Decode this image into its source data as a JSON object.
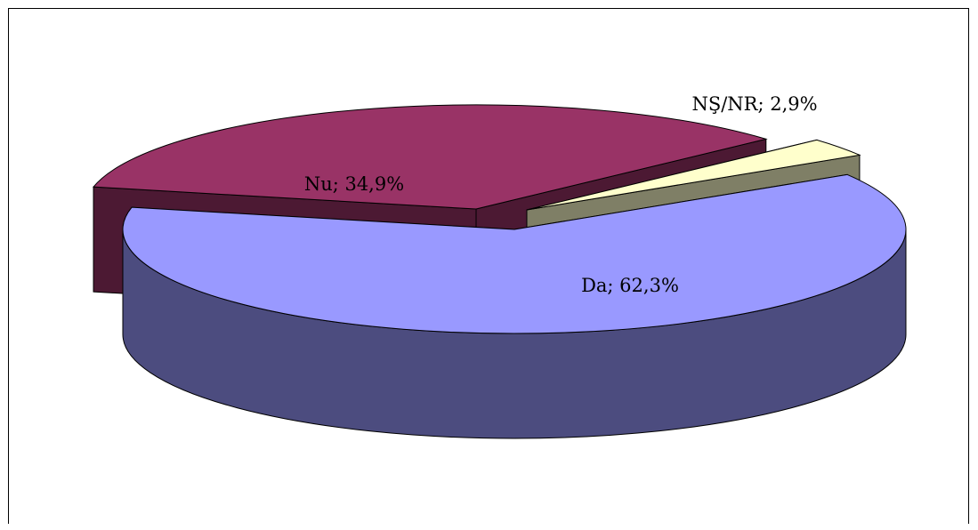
{
  "chart_data": {
    "type": "pie",
    "title": "",
    "slices": [
      {
        "label": "Da; 62,3%",
        "name": "Da",
        "value": 62.3,
        "color": "#9999ff",
        "side_color": "#4c4c7f"
      },
      {
        "label": "Nu; 34,9%",
        "name": "Nu",
        "value": 34.9,
        "color": "#993366",
        "side_color": "#4c1933"
      },
      {
        "label": "NŞ/NR; 2,9%",
        "name": "NŞ/NR",
        "value": 2.9,
        "color": "#ffffcc",
        "side_color": "#7f7f66"
      }
    ],
    "legend": "none",
    "three_d": true,
    "exploded": true
  }
}
